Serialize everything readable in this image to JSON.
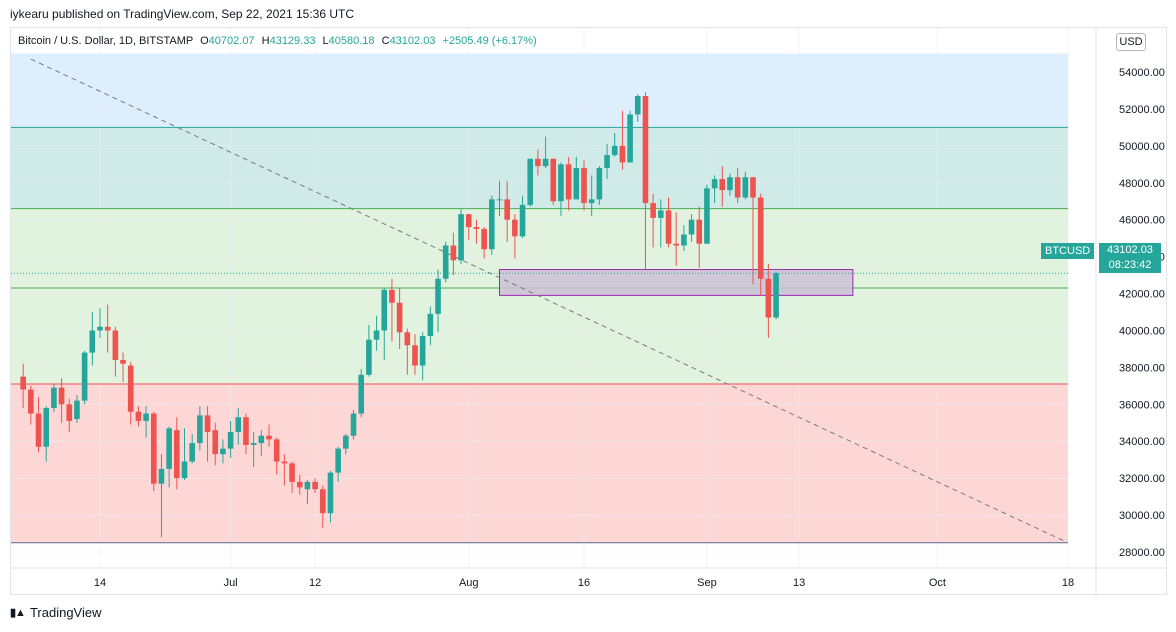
{
  "header": {
    "published_by": "iykearu published on TradingView.com, Sep 22, 2021 15:36 UTC"
  },
  "legend": {
    "symbol": "Bitcoin / U.S. Dollar, 1D, BITSTAMP",
    "o_label": "O",
    "o_value": "40702.07",
    "h_label": "H",
    "h_value": "43129.33",
    "l_label": "L",
    "l_value": "40580.18",
    "c_label": "C",
    "c_value": "43102.03",
    "change": "+2505.49 (+6.17%)"
  },
  "currency_button": "USD",
  "symbol_badge": "BTCUSD",
  "price_badge": {
    "price": "43102.03",
    "countdown": "08:23:42"
  },
  "footer": {
    "logo_icon": "tradingview-logo-icon",
    "brand": "TradingView"
  },
  "colors": {
    "up": "#26a69a",
    "down": "#ef5350",
    "zone_blue": "#ddeefc",
    "zone_teal": "#cfeae7",
    "zone_green": "#e1f2df",
    "zone_red": "#fcd7d6",
    "box_fill": "#cbc1d6",
    "box_stroke": "#9c27b0"
  },
  "chart_data": {
    "type": "candlestick",
    "title": "Bitcoin / U.S. Dollar, 1D, BITSTAMP",
    "ylim": [
      27000,
      55000
    ],
    "y_ticks": [
      "28000.00",
      "30000.00",
      "32000.00",
      "34000.00",
      "36000.00",
      "38000.00",
      "40000.00",
      "42000.00",
      "44000.00",
      "46000.00",
      "48000.00",
      "50000.00",
      "52000.00",
      "54000.00"
    ],
    "x_ticks": [
      {
        "label": "14",
        "date": "2021-06-14"
      },
      {
        "label": "Jul",
        "date": "2021-07-01"
      },
      {
        "label": "12",
        "date": "2021-07-12"
      },
      {
        "label": "Aug",
        "date": "2021-08-01"
      },
      {
        "label": "16",
        "date": "2021-08-16"
      },
      {
        "label": "Sep",
        "date": "2021-09-01"
      },
      {
        "label": "13",
        "date": "2021-09-13"
      },
      {
        "label": "Oct",
        "date": "2021-10-01"
      },
      {
        "label": "18",
        "date": "2021-10-18"
      }
    ],
    "first_date": "2021-06-04",
    "candles": [
      [
        37500,
        36800,
        38200,
        35800
      ],
      [
        36800,
        35500,
        37000,
        34900
      ],
      [
        35500,
        33700,
        36400,
        33400
      ],
      [
        33700,
        35800,
        35900,
        32900
      ],
      [
        35800,
        36900,
        37100,
        35600
      ],
      [
        36900,
        36000,
        37400,
        35000
      ],
      [
        36000,
        35100,
        36300,
        34500
      ],
      [
        35200,
        36200,
        36500,
        35000
      ],
      [
        36200,
        38800,
        38900,
        36000
      ],
      [
        38800,
        40000,
        41000,
        38100
      ],
      [
        40000,
        40200,
        41200,
        39600
      ],
      [
        40200,
        40000,
        41400,
        38800
      ],
      [
        40000,
        38400,
        40200,
        37500
      ],
      [
        38400,
        38200,
        38800,
        37200
      ],
      [
        38100,
        35600,
        38300,
        34900
      ],
      [
        35600,
        35100,
        35900,
        34800
      ],
      [
        35100,
        35500,
        35900,
        34200
      ],
      [
        35500,
        31700,
        35600,
        31300
      ],
      [
        31700,
        32500,
        33300,
        28800
      ],
      [
        32500,
        34700,
        34800,
        31500
      ],
      [
        34600,
        32000,
        35300,
        31400
      ],
      [
        32000,
        32900,
        34700,
        31900
      ],
      [
        32900,
        33900,
        34400,
        32800
      ],
      [
        33900,
        35400,
        35900,
        33500
      ],
      [
        35400,
        34500,
        35900,
        32900
      ],
      [
        34600,
        33300,
        35000,
        32700
      ],
      [
        33300,
        33600,
        34100,
        32800
      ],
      [
        33600,
        34500,
        35100,
        33100
      ],
      [
        34500,
        35300,
        35800,
        33800
      ],
      [
        35300,
        33800,
        35500,
        33300
      ],
      [
        33800,
        33900,
        34500,
        32600
      ],
      [
        33900,
        34300,
        34600,
        33200
      ],
      [
        34300,
        34100,
        34900,
        33700
      ],
      [
        34100,
        32900,
        34200,
        32200
      ],
      [
        32900,
        32800,
        33300,
        31600
      ],
      [
        32800,
        31800,
        32900,
        31200
      ],
      [
        31800,
        31500,
        32200,
        31100
      ],
      [
        31400,
        31800,
        31900,
        30600
      ],
      [
        31800,
        31400,
        32000,
        31200
      ],
      [
        31400,
        30100,
        31600,
        29300
      ],
      [
        30100,
        32300,
        32400,
        29600
      ],
      [
        32300,
        33600,
        33700,
        31800
      ],
      [
        33600,
        34300,
        34400,
        33300
      ],
      [
        34300,
        35500,
        35700,
        34100
      ],
      [
        35500,
        37600,
        37900,
        35300
      ],
      [
        37600,
        39500,
        40300,
        37500
      ],
      [
        39500,
        40000,
        40800,
        38900
      ],
      [
        40000,
        42200,
        42300,
        38400
      ],
      [
        42200,
        41500,
        42800,
        39400
      ],
      [
        41500,
        39900,
        42300,
        39000
      ],
      [
        39900,
        39200,
        40100,
        37600
      ],
      [
        39200,
        38100,
        39800,
        37600
      ],
      [
        38100,
        39700,
        39900,
        37300
      ],
      [
        39700,
        40900,
        41300,
        39200
      ],
      [
        40900,
        42800,
        43300,
        39900
      ],
      [
        42800,
        44600,
        44800,
        42600
      ],
      [
        44600,
        43800,
        45300,
        43000
      ],
      [
        43800,
        46300,
        46600,
        43600
      ],
      [
        46300,
        45600,
        46300,
        44900
      ],
      [
        45600,
        45500,
        46000,
        44700
      ],
      [
        45500,
        44400,
        45600,
        43900
      ],
      [
        44400,
        47100,
        47300,
        44100
      ],
      [
        47100,
        47100,
        48100,
        46200
      ],
      [
        47100,
        46000,
        48100,
        44800
      ],
      [
        46000,
        45100,
        46300,
        43900
      ],
      [
        45100,
        46800,
        47300,
        45000
      ],
      [
        46800,
        49300,
        49300,
        46700
      ],
      [
        49300,
        48900,
        49800,
        48400
      ],
      [
        48900,
        49300,
        50500,
        48800
      ],
      [
        49300,
        47000,
        49300,
        46800
      ],
      [
        47000,
        49000,
        49100,
        46200
      ],
      [
        49000,
        47100,
        49400,
        46500
      ],
      [
        47100,
        48800,
        49400,
        48500
      ],
      [
        48800,
        46900,
        49200,
        46500
      ],
      [
        46900,
        47100,
        48400,
        46200
      ],
      [
        47100,
        48800,
        48900,
        46800
      ],
      [
        48800,
        49500,
        50100,
        48200
      ],
      [
        49500,
        50000,
        50700,
        49400
      ],
      [
        50000,
        49100,
        51900,
        48700
      ],
      [
        49100,
        51700,
        51900,
        49100
      ],
      [
        51700,
        52700,
        52800,
        51300
      ],
      [
        52700,
        46900,
        52900,
        43300
      ],
      [
        46900,
        46100,
        47400,
        44500
      ],
      [
        46100,
        46500,
        47100,
        44500
      ],
      [
        46500,
        44700,
        47200,
        44500
      ],
      [
        44700,
        44600,
        46400,
        43500
      ],
      [
        44600,
        45200,
        45700,
        44300
      ],
      [
        45200,
        46000,
        46300,
        44800
      ],
      [
        46000,
        44700,
        46700,
        43400
      ],
      [
        44700,
        47700,
        47900,
        44700
      ],
      [
        47700,
        48200,
        48400,
        46900
      ],
      [
        48200,
        47600,
        48900,
        46700
      ],
      [
        47600,
        48300,
        48500,
        47300
      ],
      [
        48300,
        47200,
        48800,
        46900
      ],
      [
        47200,
        48300,
        48600,
        47100
      ],
      [
        48300,
        47200,
        48300,
        42500
      ],
      [
        47200,
        42800,
        47400,
        41900
      ],
      [
        42800,
        40700,
        43600,
        39600
      ],
      [
        40700,
        43100,
        43200,
        40600
      ]
    ],
    "zones": [
      {
        "name": "blue",
        "y0": 51000,
        "y1": 55000
      },
      {
        "name": "teal",
        "y0": 46600,
        "y1": 51000
      },
      {
        "name": "green",
        "y0": 37100,
        "y1": 46600
      },
      {
        "name": "red",
        "y0": 28500,
        "y1": 37100
      }
    ],
    "horizontal_levels": [
      51000,
      46600,
      42300,
      37100,
      28500
    ],
    "range_box": {
      "start": "2021-08-05",
      "end": "2021-09-20",
      "y0": 41900,
      "y1": 43300
    },
    "trendline": {
      "x0": "2021-06-05",
      "y0": 54700,
      "x1": "2021-10-18",
      "y1": 28500
    },
    "last_close": 43102.03
  }
}
